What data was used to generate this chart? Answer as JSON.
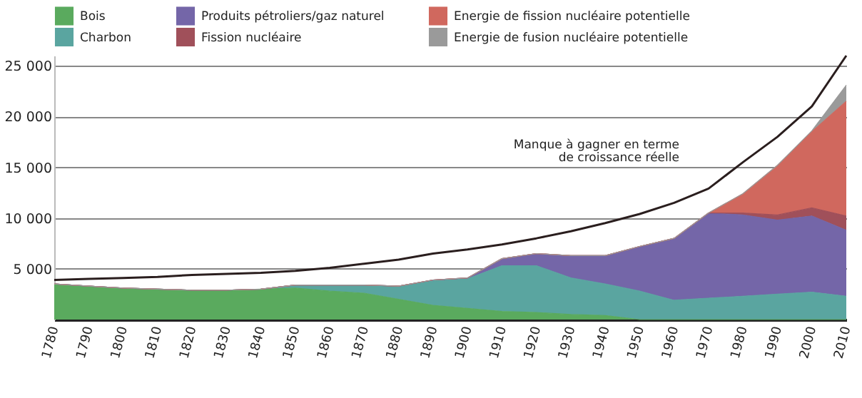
{
  "chart_data": {
    "type": "area",
    "stacked": true,
    "x": [
      1780,
      1790,
      1800,
      1810,
      1820,
      1830,
      1840,
      1850,
      1860,
      1870,
      1880,
      1890,
      1900,
      1910,
      1920,
      1930,
      1940,
      1950,
      1960,
      1970,
      1980,
      1990,
      2000,
      2010
    ],
    "series": [
      {
        "name": "Bois",
        "color": "#5aaa5e",
        "values": [
          3500,
          3300,
          3100,
          3000,
          2900,
          2900,
          3000,
          3100,
          2800,
          2600,
          2000,
          1400,
          1100,
          800,
          700,
          500,
          400,
          0,
          0,
          0,
          0,
          0,
          0,
          0
        ]
      },
      {
        "name": "Charbon",
        "color": "#5aa5a0",
        "values": [
          0,
          0,
          0,
          0,
          0,
          0,
          0,
          300,
          600,
          800,
          1300,
          2400,
          2900,
          4500,
          4600,
          3600,
          3100,
          2800,
          1900,
          2100,
          2300,
          2500,
          2700,
          2300
        ]
      },
      {
        "name": "Produits pétroliers/gaz naturel",
        "color": "#7466a8",
        "values": [
          0,
          0,
          0,
          0,
          0,
          0,
          0,
          0,
          0,
          0,
          0,
          100,
          100,
          700,
          1200,
          2200,
          2800,
          4400,
          6100,
          8400,
          8000,
          7300,
          7500,
          6500
        ]
      },
      {
        "name": "Fission nucléaire",
        "color": "#a0505a",
        "values": [
          0,
          0,
          0,
          0,
          0,
          0,
          0,
          0,
          0,
          0,
          0,
          0,
          0,
          0,
          0,
          0,
          0,
          0,
          0,
          0,
          200,
          500,
          800,
          1400
        ]
      },
      {
        "name": "Energie de fission nucléaire potentielle",
        "color": "#d0685e",
        "values": [
          0,
          0,
          0,
          0,
          0,
          0,
          0,
          0,
          0,
          0,
          0,
          0,
          0,
          0,
          0,
          0,
          0,
          0,
          0,
          0,
          1900,
          4900,
          7500,
          11300
        ]
      },
      {
        "name": "Energie de fusion nucléaire potentielle",
        "color": "#9a9a9a",
        "values": [
          0,
          0,
          0,
          0,
          0,
          0,
          0,
          0,
          0,
          0,
          0,
          0,
          0,
          0,
          0,
          0,
          0,
          0,
          0,
          0,
          0,
          0,
          100,
          1600
        ]
      },
      {
        "type": "line",
        "color": "#2a1e1e",
        "values": [
          3900,
          4000,
          4100,
          4200,
          4400,
          4500,
          4600,
          4800,
          5100,
          5500,
          5900,
          6500,
          6900,
          7400,
          8000,
          8700,
          9500,
          10400,
          11500,
          12900,
          15500,
          18000,
          21000,
          26000
        ]
      }
    ],
    "xlim": [
      1780,
      2010
    ],
    "xticks": [
      1780,
      1790,
      1800,
      1810,
      1820,
      1830,
      1840,
      1850,
      1860,
      1870,
      1880,
      1890,
      1900,
      1910,
      1920,
      1930,
      1940,
      1950,
      1960,
      1970,
      1980,
      1990,
      2000,
      2010
    ],
    "ylim": [
      0,
      26000
    ],
    "yticks": [
      {
        "value": 5000,
        "label": "5 000"
      },
      {
        "value": 10000,
        "label": "10 000"
      },
      {
        "value": 15000,
        "label": "15 000"
      },
      {
        "value": 20000,
        "label": "20 000"
      },
      {
        "value": 25000,
        "label": "25 000"
      }
    ],
    "grid": "y",
    "legend": "top",
    "annotations": [
      "Manque à gagner en terme de croissance réelle"
    ]
  }
}
